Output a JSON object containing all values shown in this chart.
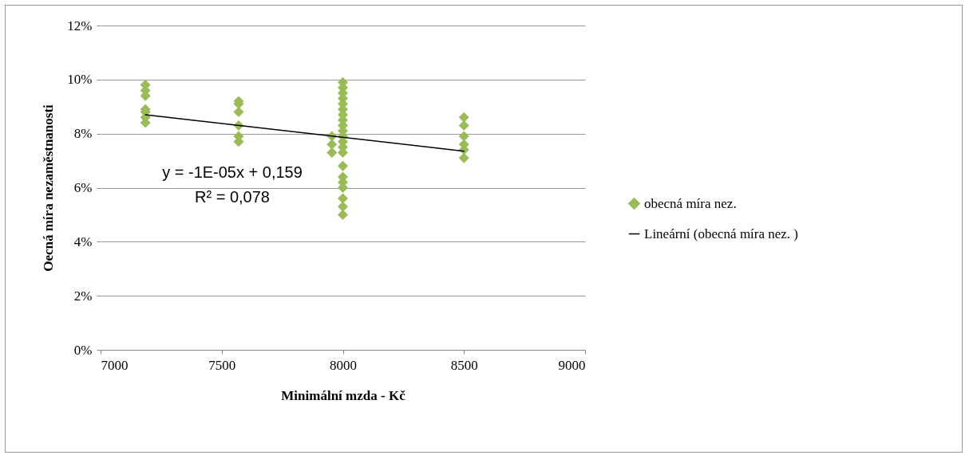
{
  "chart_data": {
    "type": "scatter",
    "xlabel": "Minimální mzda - Kč",
    "ylabel": "Oecná míra nezaměstnanosti",
    "xlim": [
      7000,
      9000
    ],
    "xticks": [
      7000,
      7500,
      8000,
      8500,
      9000
    ],
    "ylim": [
      0,
      12
    ],
    "yticks": [
      {
        "value": 0,
        "label": "0%"
      },
      {
        "value": 2,
        "label": "2%"
      },
      {
        "value": 4,
        "label": "4%"
      },
      {
        "value": 6,
        "label": "6%"
      },
      {
        "value": 8,
        "label": "8%"
      },
      {
        "value": 10,
        "label": "10%"
      },
      {
        "value": 12,
        "label": "12%"
      }
    ],
    "grid": "y",
    "legend": "right",
    "series": [
      {
        "name": "obecná míra nez.",
        "marker": "diamond",
        "color": "#9bbb59",
        "x": [
          7185,
          7185,
          7185,
          7185,
          7185,
          7185,
          7185,
          7570,
          7570,
          7570,
          7570,
          7570,
          7570,
          7955,
          7955,
          7955,
          8000,
          8000,
          8000,
          8000,
          8000,
          8000,
          8000,
          8000,
          8000,
          8000,
          8000,
          8000,
          8000,
          8000,
          8000,
          8000,
          8000,
          8000,
          8000,
          8000,
          8000,
          8500,
          8500,
          8500,
          8500,
          8500,
          8500
        ],
        "values": [
          9.8,
          9.6,
          9.4,
          8.9,
          8.8,
          8.6,
          8.4,
          9.2,
          9.1,
          8.8,
          8.3,
          7.9,
          7.7,
          7.9,
          7.6,
          7.3,
          9.9,
          9.7,
          9.5,
          9.3,
          9.1,
          8.9,
          8.7,
          8.5,
          8.3,
          8.1,
          7.9,
          7.7,
          7.5,
          7.3,
          6.8,
          6.4,
          6.2,
          6.0,
          5.6,
          5.3,
          5.0,
          8.6,
          8.3,
          7.9,
          7.6,
          7.4,
          7.1
        ]
      },
      {
        "name": "Lineární (obecná míra nez. )",
        "type": "line",
        "color": "#000000",
        "x": [
          7185,
          8500
        ],
        "values": [
          8.7,
          7.35
        ]
      }
    ],
    "annotations": [
      "y = -1E-05x + 0,159",
      "R² = 0,078"
    ]
  }
}
